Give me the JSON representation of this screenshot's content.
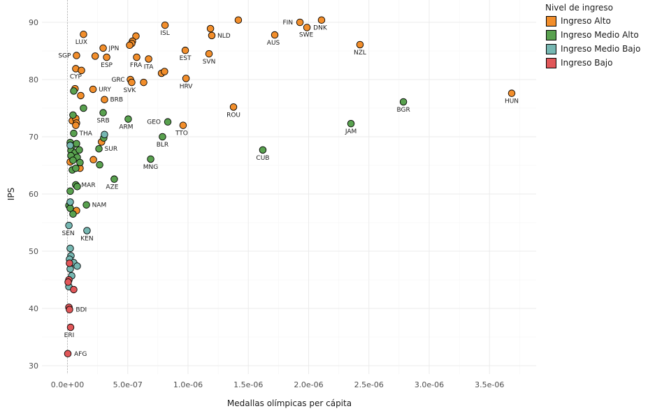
{
  "chart_data": {
    "type": "scatter",
    "title": "",
    "xlabel": "Medallas olímpicas per cápita",
    "ylabel": "IPS",
    "xlim": [
      -1.4e-07,
      3.9e-06
    ],
    "ylim": [
      28.6,
      93.8
    ],
    "x_ticks": [
      0,
      5e-07,
      1e-06,
      1.5e-06,
      2e-06,
      2.5e-06,
      3e-06,
      3.5e-06
    ],
    "x_tick_labels": [
      "0.0e+00",
      "5.0e-07",
      "1.0e-06",
      "1.5e-06",
      "2.0e-06",
      "2.5e-06",
      "3.0e-06",
      "3.5e-06"
    ],
    "y_ticks": [
      30,
      40,
      50,
      60,
      70,
      80,
      90
    ],
    "y_tick_labels": [
      "30",
      "40",
      "50",
      "60",
      "70",
      "80",
      "90"
    ],
    "grid": true,
    "reference_line_x": 0,
    "legend": {
      "title": "Nivel de ingreso",
      "placement": "top-right",
      "entries": [
        {
          "key": "alto",
          "label": "Ingreso Alto",
          "color": "#F28E2B"
        },
        {
          "key": "medio_alto",
          "label": "Ingreso Medio Alto",
          "color": "#59A14F"
        },
        {
          "key": "medio_bajo",
          "label": "Ingreso Medio Bajo",
          "color": "#76B7B2"
        },
        {
          "key": "bajo",
          "label": "Ingreso Bajo",
          "color": "#E15759"
        }
      ]
    },
    "series": [
      {
        "name": "Ingreso Alto",
        "key": "alto",
        "points": [
          {
            "x": 3.684e-06,
            "y": 77.6,
            "label": "HUN"
          },
          {
            "x": 2.426e-06,
            "y": 86.1,
            "label": "NZL"
          },
          {
            "x": 2.107e-06,
            "y": 90.4,
            "label": "DNK"
          },
          {
            "x": 1.986e-06,
            "y": 89.1,
            "label": "SWE"
          },
          {
            "x": 1.928e-06,
            "y": 90.0,
            "label": "FIN"
          },
          {
            "x": 1.719e-06,
            "y": 87.8,
            "label": "AUS"
          },
          {
            "x": 1.417e-06,
            "y": 90.4,
            "label": ""
          },
          {
            "x": 1.377e-06,
            "y": 75.2,
            "label": "ROU"
          },
          {
            "x": 1.186e-06,
            "y": 88.9,
            "label": ""
          },
          {
            "x": 1.197e-06,
            "y": 87.7,
            "label": "NLD"
          },
          {
            "x": 1.174e-06,
            "y": 84.5,
            "label": "SVN"
          },
          {
            "x": 9.83e-07,
            "y": 80.2,
            "label": "HRV"
          },
          {
            "x": 9.77e-07,
            "y": 85.1,
            "label": "EST"
          },
          {
            "x": 9.59e-07,
            "y": 72.0,
            "label": "TTO"
          },
          {
            "x": 8.09e-07,
            "y": 89.5,
            "label": "ISL"
          },
          {
            "x": 7.8e-07,
            "y": 81.1,
            "label": ""
          },
          {
            "x": 8.05e-07,
            "y": 81.4,
            "label": ""
          },
          {
            "x": 6.73e-07,
            "y": 83.6,
            "label": "ITA"
          },
          {
            "x": 6.32e-07,
            "y": 79.5,
            "label": ""
          },
          {
            "x": 5.74e-07,
            "y": 83.9,
            "label": "FRA"
          },
          {
            "x": 5.68e-07,
            "y": 87.6,
            "label": ""
          },
          {
            "x": 5.39e-07,
            "y": 86.7,
            "label": ""
          },
          {
            "x": 5.33e-07,
            "y": 86.3,
            "label": ""
          },
          {
            "x": 5.16e-07,
            "y": 86.0,
            "label": ""
          },
          {
            "x": 5.22e-07,
            "y": 80.0,
            "label": "GRC"
          },
          {
            "x": 5.33e-07,
            "y": 79.5,
            "label": "SVK"
          },
          {
            "x": 3.25e-07,
            "y": 83.9,
            "label": "ESP"
          },
          {
            "x": 2.96e-07,
            "y": 85.5,
            "label": "JPN"
          },
          {
            "x": 2.3e-07,
            "y": 84.1,
            "label": ""
          },
          {
            "x": 3.07e-07,
            "y": 76.5,
            "label": "BRB"
          },
          {
            "x": 2.12e-07,
            "y": 78.3,
            "label": "URY"
          },
          {
            "x": 1.33e-07,
            "y": 87.9,
            "label": "LUX"
          },
          {
            "x": 7.5e-08,
            "y": 84.2,
            "label": "SGP"
          },
          {
            "x": 6.9e-08,
            "y": 81.9,
            "label": "CYP"
          },
          {
            "x": 1.16e-07,
            "y": 81.6,
            "label": ""
          },
          {
            "x": 6.3e-08,
            "y": 78.4,
            "label": ""
          },
          {
            "x": 1.1e-07,
            "y": 77.2,
            "label": ""
          },
          {
            "x": 4e-08,
            "y": 72.8,
            "label": ""
          },
          {
            "x": 6.9e-08,
            "y": 73.2,
            "label": ""
          },
          {
            "x": 7.5e-08,
            "y": 72.4,
            "label": ""
          },
          {
            "x": 6.9e-08,
            "y": 72.0,
            "label": ""
          },
          {
            "x": 2.3e-08,
            "y": 65.6,
            "label": ""
          },
          {
            "x": 1.04e-07,
            "y": 64.5,
            "label": ""
          },
          {
            "x": 7.5e-08,
            "y": 57.1,
            "label": ""
          },
          {
            "x": 2.83e-07,
            "y": 69.1,
            "label": ""
          },
          {
            "x": 2.15e-07,
            "y": 66.0,
            "label": ""
          }
        ]
      },
      {
        "name": "Ingreso Medio Alto",
        "key": "medio_alto",
        "points": [
          {
            "x": 2.786e-06,
            "y": 76.1,
            "label": "BGR"
          },
          {
            "x": 2.351e-06,
            "y": 72.3,
            "label": "JAM"
          },
          {
            "x": 1.62e-06,
            "y": 67.7,
            "label": "CUB"
          },
          {
            "x": 8.32e-07,
            "y": 72.6,
            "label": "GEO"
          },
          {
            "x": 7.88e-07,
            "y": 70.0,
            "label": "BLR"
          },
          {
            "x": 6.9e-07,
            "y": 66.1,
            "label": "MNG"
          },
          {
            "x": 5.04e-07,
            "y": 73.1,
            "label": "ARM"
          },
          {
            "x": 3.88e-07,
            "y": 62.6,
            "label": "AZE"
          },
          {
            "x": 2.96e-07,
            "y": 74.2,
            "label": "SRB"
          },
          {
            "x": 2.61e-07,
            "y": 67.9,
            "label": "SUR"
          },
          {
            "x": 2.67e-07,
            "y": 65.1,
            "label": ""
          },
          {
            "x": 3.01e-07,
            "y": 69.8,
            "label": ""
          },
          {
            "x": 1.57e-07,
            "y": 58.1,
            "label": "NAM"
          },
          {
            "x": 1.33e-07,
            "y": 75.0,
            "label": ""
          },
          {
            "x": 5.2e-08,
            "y": 78.0,
            "label": ""
          },
          {
            "x": 4.6e-08,
            "y": 73.8,
            "label": ""
          },
          {
            "x": 5.2e-08,
            "y": 70.6,
            "label": "THA"
          },
          {
            "x": 2.3e-08,
            "y": 69.0,
            "label": ""
          },
          {
            "x": 4e-08,
            "y": 68.4,
            "label": ""
          },
          {
            "x": 7.5e-08,
            "y": 68.8,
            "label": ""
          },
          {
            "x": 2.9e-08,
            "y": 67.6,
            "label": ""
          },
          {
            "x": 6.3e-08,
            "y": 67.2,
            "label": ""
          },
          {
            "x": 9.8e-08,
            "y": 67.7,
            "label": ""
          },
          {
            "x": 2.9e-08,
            "y": 66.7,
            "label": ""
          },
          {
            "x": 8.1e-08,
            "y": 66.4,
            "label": ""
          },
          {
            "x": 1.04e-07,
            "y": 65.5,
            "label": ""
          },
          {
            "x": 4.6e-08,
            "y": 65.9,
            "label": ""
          },
          {
            "x": 4e-08,
            "y": 64.2,
            "label": ""
          },
          {
            "x": 6.9e-08,
            "y": 64.5,
            "label": ""
          },
          {
            "x": 6.9e-08,
            "y": 61.6,
            "label": "MAR"
          },
          {
            "x": 8.1e-08,
            "y": 61.3,
            "label": ""
          },
          {
            "x": 2.3e-08,
            "y": 60.5,
            "label": ""
          },
          {
            "x": 1.2e-08,
            "y": 58.0,
            "label": ""
          },
          {
            "x": 2.3e-08,
            "y": 57.5,
            "label": ""
          },
          {
            "x": 4.6e-08,
            "y": 56.5,
            "label": ""
          }
        ]
      },
      {
        "name": "Ingreso Medio Bajo",
        "key": "medio_bajo",
        "points": [
          {
            "x": 3.07e-07,
            "y": 70.4,
            "label": ""
          },
          {
            "x": 1.62e-07,
            "y": 53.6,
            "label": "KEN"
          },
          {
            "x": 1.2e-08,
            "y": 54.5,
            "label": "SEN"
          },
          {
            "x": 2.3e-08,
            "y": 68.5,
            "label": ""
          },
          {
            "x": 2.3e-08,
            "y": 58.6,
            "label": ""
          },
          {
            "x": 2.3e-08,
            "y": 50.5,
            "label": ""
          },
          {
            "x": 2.9e-08,
            "y": 49.2,
            "label": ""
          },
          {
            "x": 1.7e-08,
            "y": 48.6,
            "label": ""
          },
          {
            "x": 5.2e-08,
            "y": 48.0,
            "label": ""
          },
          {
            "x": 8.1e-08,
            "y": 47.4,
            "label": ""
          },
          {
            "x": 2.3e-08,
            "y": 46.9,
            "label": ""
          },
          {
            "x": 3.5e-08,
            "y": 45.7,
            "label": ""
          },
          {
            "x": 1.2e-08,
            "y": 43.8,
            "label": ""
          }
        ]
      },
      {
        "name": "Ingreso Bajo",
        "key": "bajo",
        "points": [
          {
            "x": 3e-09,
            "y": 32.1,
            "label": "AFG"
          },
          {
            "x": 2.6e-08,
            "y": 36.7,
            "label": "ERI"
          },
          {
            "x": 1.2e-08,
            "y": 40.2,
            "label": ""
          },
          {
            "x": 1.7e-08,
            "y": 39.8,
            "label": "BDI"
          },
          {
            "x": 5.2e-08,
            "y": 43.3,
            "label": ""
          },
          {
            "x": 1.2e-08,
            "y": 45.0,
            "label": ""
          },
          {
            "x": 6e-09,
            "y": 44.6,
            "label": ""
          },
          {
            "x": 1.7e-08,
            "y": 47.9,
            "label": ""
          }
        ]
      }
    ]
  }
}
